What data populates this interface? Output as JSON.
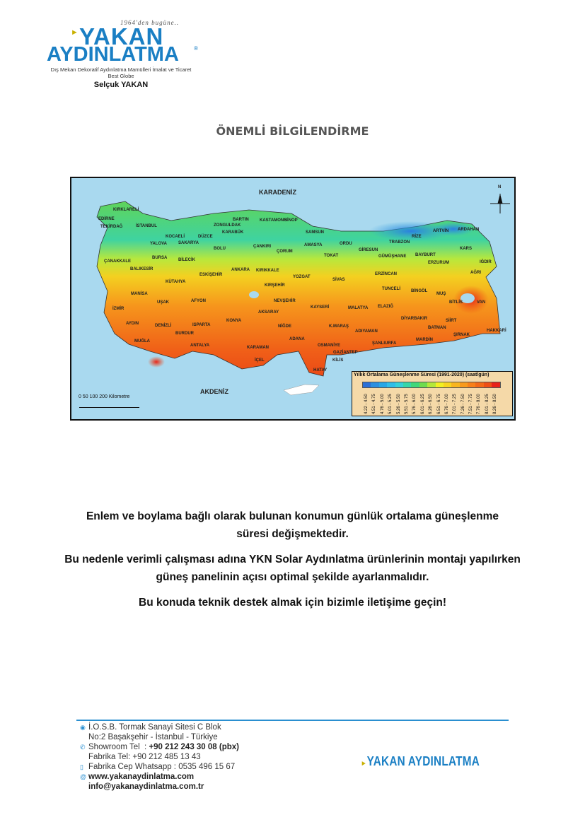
{
  "header": {
    "logo": {
      "tagline": "1964'den bugüne..",
      "line1": "YAKAN",
      "line2": "AYDINLATMA",
      "registered": "®",
      "subtitle": "Dış Mekan Dekoratif Aydınlatma Mamülleri İmalat ve Ticaret",
      "subtitle2": "Best Globe",
      "owner": "Selçuk YAKAN"
    }
  },
  "title": "ÖNEMLİ BİLGİLENDİRME",
  "map": {
    "seas": {
      "north": "KARADENİZ",
      "south": "AKDENİZ"
    },
    "compass": "N",
    "scale": "0    50   100          200 Kilometre",
    "cities": [
      "KIRKLARELİ",
      "EDİRNE",
      "TEKİRDAĞ",
      "İSTANBUL",
      "KOCAELİ",
      "DÜZCE",
      "ZONGULDAK",
      "BARTIN",
      "KASTAMONU",
      "SİNOP",
      "KARABÜK",
      "YALOVA",
      "SAKARYA",
      "BOLU",
      "ÇANKIRI",
      "SAMSUN",
      "AMASYA",
      "ÇORUM",
      "ORDU",
      "GİRESUN",
      "TRABZON",
      "RİZE",
      "ARTVİN",
      "ARDAHAN",
      "KARS",
      "GÜMÜŞHANE",
      "BAYBURT",
      "ERZURUM",
      "IĞDIR",
      "AĞRI",
      "ÇANAKKALE",
      "BURSA",
      "BİLECİK",
      "BALIKESİR",
      "ESKİŞEHİR",
      "ANKARA",
      "KIRIKKALE",
      "YOZGAT",
      "TOKAT",
      "SİVAS",
      "ERZİNCAN",
      "KÜTAHYA",
      "KIRŞEHİR",
      "TUNCELİ",
      "BİNGÖL",
      "MUŞ",
      "BİTLİS",
      "VAN",
      "MANİSA",
      "UŞAK",
      "AFYON",
      "NEVŞEHİR",
      "KAYSERİ",
      "MALATYA",
      "ELAZIĞ",
      "İZMİR",
      "AKSARAY",
      "DİYARBAKIR",
      "AYDIN",
      "DENİZLİ",
      "ISPARTA",
      "KONYA",
      "NİĞDE",
      "K.MARAŞ",
      "BATMAN",
      "SİİRT",
      "HAKKARİ",
      "ŞIRNAK",
      "ADIYAMAN",
      "MUĞLA",
      "BURDUR",
      "ADANA",
      "OSMANİYE",
      "ŞANLIURFA",
      "MARDİN",
      "GAZİANTEP",
      "ANTALYA",
      "KARAMAN",
      "KİLİS",
      "İÇEL",
      "HATAY"
    ],
    "legend": {
      "title": "Yıllık Ortalama Güneşlenme Süresi (1991-2020) (saat/gün)",
      "ranges": [
        "4.22 - 4.50",
        "4.51 - 4.75",
        "4.76 - 5.00",
        "5.01 - 5.25",
        "5.26 - 5.50",
        "5.51 - 5.75",
        "5.76 - 6.00",
        "6.01 - 6.25",
        "6.26 - 6.50",
        "6.51 - 6.75",
        "6.76 - 7.00",
        "7.01 - 7.25",
        "7.26 - 7.50",
        "7.51 - 7.75",
        "7.76 - 8.00",
        "8.01 - 8.25",
        "8.26 - 8.50"
      ],
      "colors": [
        "#2b6fd6",
        "#2b8fe0",
        "#27a6e6",
        "#2fbde8",
        "#34d0d8",
        "#36d6a8",
        "#3fd77a",
        "#6fdc4e",
        "#b5e83a",
        "#f2f022",
        "#f7d520",
        "#f8b51e",
        "#f89a1c",
        "#f7801a",
        "#f26918",
        "#ee4f16",
        "#e8221a"
      ]
    }
  },
  "body": {
    "p1": "Enlem ve boylama bağlı olarak bulunan konumun günlük ortalama güneşlenme süresi değişmektedir.",
    "p2": "Bu nedenle verimli çalışması adına YKN Solar Aydınlatma ürünlerinin montajı yapılırken güneş panelinin açısı optimal şekilde ayarlanmalıdır.",
    "p3": "Bu konuda teknik destek almak için bizimle iletişime geçin!"
  },
  "footer": {
    "address1": "İ.O.S.B. Tormak Sanayi Sitesi C Blok",
    "address2": "No:2 Başakşehir - İstanbul - Türkiye",
    "showroom_label": "Showroom Tel  : ",
    "showroom_tel": "+90 212 243 30 08 (pbx)",
    "factory_tel": "Fabrika Tel: +90 212 485 13 43",
    "whatsapp": "Fabrika Cep Whatsapp : 0535 496 15 67",
    "website": "www.yakanaydinlatma.com",
    "email": "info@yakanaydinlatma.com.tr",
    "logo": "YAKAN AYDINLATMA",
    "accent": "#2a8fd0"
  }
}
